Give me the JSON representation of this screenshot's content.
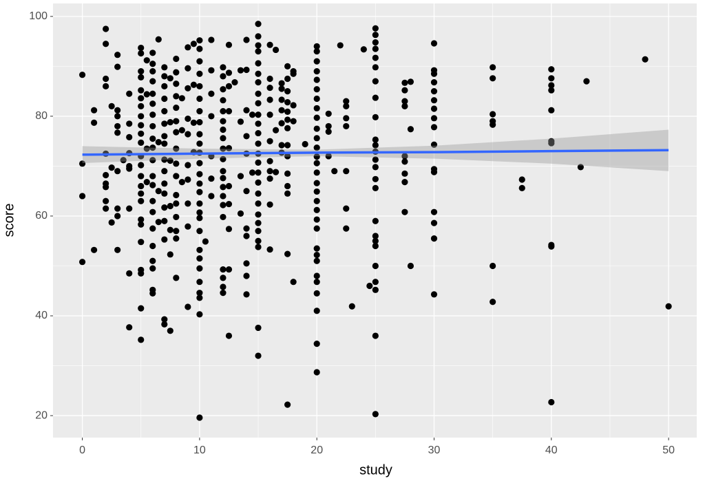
{
  "chart_data": {
    "type": "scatter",
    "x_label": "study",
    "y_label": "score",
    "xlim": [
      -2.5,
      52.4
    ],
    "ylim": [
      15.6,
      102.6
    ],
    "xticks": [
      0,
      10,
      20,
      30,
      40,
      50
    ],
    "yticks": [
      20,
      40,
      60,
      80,
      100
    ],
    "xminor": [
      5,
      15,
      25,
      35,
      45
    ],
    "yminor": [
      30,
      50,
      70,
      90
    ],
    "grid": true,
    "panel_color": "#ebebeb",
    "point_color": "#000000",
    "groups": [
      {
        "x": 0,
        "y": [
          88.3,
          70.5,
          64,
          50.8
        ]
      },
      {
        "x": 1,
        "y": [
          81.2,
          78.7,
          53.2
        ]
      },
      {
        "x": 2,
        "y": [
          97.5,
          94.5,
          87.5,
          86,
          72.5,
          68.2,
          66.5,
          65.8,
          63,
          61.5
        ]
      },
      {
        "x": 2.5,
        "y": [
          82,
          69.7,
          58.7
        ]
      },
      {
        "x": 3,
        "y": [
          92.3,
          89.9,
          81.2,
          80,
          78,
          76.7,
          69,
          61.5,
          60,
          53.2
        ]
      },
      {
        "x": 3.5,
        "y": [
          71.2
        ]
      },
      {
        "x": 4,
        "y": [
          84.5,
          78.5,
          75.8,
          72.6,
          70,
          69.5,
          61.5,
          48.5,
          37.7
        ]
      },
      {
        "x": 5,
        "y": [
          93.7,
          92.6,
          89,
          87.8,
          85.2,
          83.6,
          82,
          80,
          78.2,
          76.5,
          74.7,
          72,
          70.2,
          68,
          66,
          64.5,
          63,
          59.3,
          58.3,
          54.8,
          49.2,
          48.5,
          41.5,
          35.2
        ]
      },
      {
        "x": 5.5,
        "y": [
          91.2,
          84.4,
          73.5,
          66.8
        ]
      },
      {
        "x": 6,
        "y": [
          92.7,
          90.5,
          89,
          87,
          84.5,
          82.5,
          80.3,
          78,
          75.5,
          73.7,
          71.2,
          68,
          66.2,
          63,
          60.8,
          57.5,
          54,
          51,
          49.5,
          45.2,
          44.5
        ]
      },
      {
        "x": 6.5,
        "y": [
          95.4,
          74.8,
          65,
          58.8
        ]
      },
      {
        "x": 7,
        "y": [
          89.8,
          88,
          86,
          83.5,
          81,
          78.5,
          76,
          74.5,
          71.3,
          69,
          66.5,
          64.5,
          61.7,
          59,
          55.3,
          39.3,
          38.3
        ]
      },
      {
        "x": 7.5,
        "y": [
          87.6,
          78.8,
          71.1,
          62,
          57.2,
          52.3,
          37
        ]
      },
      {
        "x": 8,
        "y": [
          91.5,
          88.8,
          86.5,
          84,
          81.7,
          79,
          76.8,
          73.5,
          70.5,
          68,
          64.2,
          62.5,
          59.8,
          57,
          55.5,
          47.6
        ]
      },
      {
        "x": 8.5,
        "y": [
          83.6,
          77.2,
          66.8
        ]
      },
      {
        "x": 9,
        "y": [
          93.8,
          89.6,
          85.6,
          79.5,
          76.4,
          70.2,
          67.3,
          62.5,
          57.9,
          41.8
        ]
      },
      {
        "x": 9.5,
        "y": [
          94.5,
          86.3,
          78.7,
          72.8
        ]
      },
      {
        "x": 10,
        "y": [
          95.2,
          93.5,
          91,
          88.5,
          86,
          83.5,
          81,
          78.8,
          76.4,
          74.5,
          72.7,
          70.6,
          68.4,
          66.5,
          64.8,
          62.5,
          60.7,
          59.6,
          57,
          53.2,
          51.5,
          49.5,
          46.8,
          44.6,
          43.6,
          40.3,
          19.6
        ]
      },
      {
        "x": 10.5,
        "y": [
          54.9
        ]
      },
      {
        "x": 11,
        "y": [
          95.3,
          89.2,
          84.5,
          80,
          72,
          67.5,
          64
        ]
      },
      {
        "x": 12,
        "y": [
          89.8,
          88,
          85.4,
          83.2,
          81,
          79,
          77.3,
          75.6,
          73.5,
          71.4,
          69,
          67.6,
          65.8,
          64,
          62.2,
          59.8,
          49.3,
          47.6,
          45.8,
          44.6
        ]
      },
      {
        "x": 12.5,
        "y": [
          94.3,
          88.7,
          86,
          81,
          73.6,
          66,
          62.4,
          57.4,
          49.3,
          36
        ]
      },
      {
        "x": 13,
        "y": [
          86.8
        ]
      },
      {
        "x": 13.5,
        "y": [
          89.2,
          78.9,
          68,
          60.5
        ]
      },
      {
        "x": 14,
        "y": [
          95.3,
          89.3,
          81.2,
          76,
          72.5,
          65,
          57.5,
          56,
          50.5,
          48,
          44.3
        ]
      },
      {
        "x": 14.5,
        "y": [
          80.3,
          68.7
        ]
      },
      {
        "x": 15,
        "y": [
          98.5,
          96,
          94.2,
          93,
          90.6,
          88.5,
          86.8,
          84.5,
          82.6,
          80.3,
          78.5,
          76.6,
          74.5,
          72.5,
          70.7,
          68.7,
          66.7,
          64.5,
          62.5,
          60.3,
          58.6,
          57,
          55,
          53.8,
          37.6,
          32
        ]
      },
      {
        "x": 16,
        "y": [
          94.3,
          87.5,
          85.7,
          83.3,
          80.3,
          75,
          71,
          69,
          67.5,
          62.3,
          53.3
        ]
      },
      {
        "x": 16.5,
        "y": [
          93.3,
          77.2,
          68.8
        ]
      },
      {
        "x": 17,
        "y": [
          86.6,
          85.5,
          83.3,
          81.2,
          78.6,
          74.2,
          72.7
        ]
      },
      {
        "x": 17.5,
        "y": [
          90,
          87.5,
          85,
          82.8,
          80.9,
          79.3,
          77.6,
          74.2,
          72,
          68.5,
          66,
          64.5,
          52.4,
          22.2
        ]
      },
      {
        "x": 18,
        "y": [
          89,
          88.5,
          82.2,
          79,
          46.8
        ]
      },
      {
        "x": 19,
        "y": [
          74.4
        ]
      },
      {
        "x": 20,
        "y": [
          94,
          93,
          91,
          89,
          87.3,
          85.4,
          83.5,
          81.6,
          79.7,
          77.5,
          75.6,
          73.7,
          71.9,
          70.6,
          68.7,
          66.6,
          64.9,
          63,
          61.2,
          59.3,
          57.5,
          53.5,
          52.2,
          51,
          48,
          46.8,
          44.5,
          41,
          34.4,
          28.7
        ]
      },
      {
        "x": 21,
        "y": [
          80.5,
          78,
          76.9,
          72
        ]
      },
      {
        "x": 21.5,
        "y": [
          69
        ]
      },
      {
        "x": 22,
        "y": [
          94.2
        ]
      },
      {
        "x": 22.5,
        "y": [
          83,
          82,
          79.6,
          78,
          69,
          61.5,
          57.5
        ]
      },
      {
        "x": 23,
        "y": [
          41.9
        ]
      },
      {
        "x": 24,
        "y": [
          93.4
        ]
      },
      {
        "x": 24.5,
        "y": [
          46
        ]
      },
      {
        "x": 25,
        "y": [
          97.6,
          96.3,
          94.8,
          93.5,
          91.7,
          89.8,
          87,
          83.7,
          79.8,
          75.3,
          74.2,
          72.9,
          71.3,
          69.8,
          67.4,
          65.6,
          59,
          56,
          55,
          54,
          50,
          46.8,
          45.2,
          36,
          20.3
        ]
      },
      {
        "x": 27.5,
        "y": [
          86.7,
          85.2,
          83,
          82,
          72,
          70.9,
          68.5,
          66.8,
          60.8
        ]
      },
      {
        "x": 28,
        "y": [
          86.9,
          77.4,
          50
        ]
      },
      {
        "x": 30,
        "y": [
          94.6,
          89.2,
          88.5,
          86.8,
          85,
          83.2,
          81.5,
          79.6,
          77.8,
          74.3,
          69.4,
          68.8,
          60.8,
          58.6,
          55.5,
          44.3
        ]
      },
      {
        "x": 35,
        "y": [
          89.8,
          87.6,
          80.4,
          79,
          78.3,
          50,
          42.8
        ]
      },
      {
        "x": 37.5,
        "y": [
          67.3,
          65.6
        ]
      },
      {
        "x": 40,
        "y": [
          89.4,
          87.6,
          86.2,
          85.2,
          81.2,
          75,
          74.6,
          54.2,
          53.9,
          22.7
        ]
      },
      {
        "x": 42.5,
        "y": [
          69.8
        ]
      },
      {
        "x": 43,
        "y": [
          87
        ]
      },
      {
        "x": 48,
        "y": [
          91.4
        ]
      },
      {
        "x": 50,
        "y": [
          41.9
        ]
      }
    ],
    "smooth": {
      "color": "#3366ff",
      "band_color": "#999999",
      "x": [
        0,
        10,
        20,
        30,
        40,
        50
      ],
      "y": [
        72.3,
        72.5,
        72.7,
        72.8,
        73.0,
        73.2
      ],
      "lower": [
        70.6,
        71.5,
        72.0,
        71.5,
        70.5,
        69.0
      ],
      "upper": [
        74.0,
        73.5,
        73.3,
        74.1,
        75.5,
        77.3
      ]
    }
  }
}
